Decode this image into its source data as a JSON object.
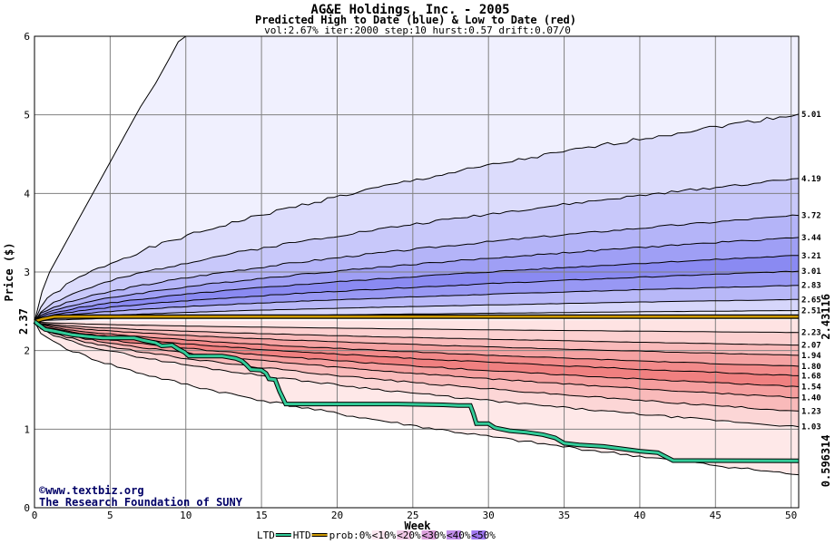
{
  "chart_data": {
    "type": "area",
    "title": "AG&E Holdings, Inc. - 2005",
    "subtitle": "Predicted High to Date (blue) &  Low to Date (red)",
    "params": "vol:2.67% iter:2000 step:10 hurst:0.57 drift:0.07/0",
    "xlabel": "Week",
    "ylabel": "Price ($)",
    "xlim": [
      0,
      50.5
    ],
    "ylim": [
      0,
      6
    ],
    "xticks": [
      0,
      5,
      10,
      15,
      20,
      25,
      30,
      35,
      40,
      45,
      50
    ],
    "yticks": [
      0,
      1,
      2,
      3,
      4,
      5,
      6
    ],
    "grid": true,
    "start_price": 2.37,
    "start_label": "2.37",
    "htd_current": 2.43116,
    "htd_label": "2.43116",
    "ltd_current": 0.596314,
    "ltd_label": "0.596314",
    "high_bands_end": [
      5.01,
      4.19,
      3.72,
      3.44,
      3.21,
      3.01,
      2.83,
      2.65,
      2.51
    ],
    "high_bands_labels": [
      "5.01",
      "4.19",
      "3.72",
      "3.44",
      "3.21",
      "3.01",
      "2.83",
      "2.65",
      "2.51"
    ],
    "low_bands_end": [
      2.23,
      2.07,
      1.94,
      1.8,
      1.68,
      1.54,
      1.4,
      1.23,
      1.03
    ],
    "low_bands_labels": [
      "2.23",
      "2.07",
      "1.94",
      "1.80",
      "1.68",
      "1.54",
      "1.40",
      "1.23",
      "1.03"
    ],
    "outer_high_label_note": "",
    "htd_series": {
      "name": "HTD",
      "x": [
        0,
        0.5,
        1.3,
        2,
        50.5
      ],
      "y": [
        2.37,
        2.4,
        2.43,
        2.43116,
        2.43116
      ]
    },
    "ltd_series": {
      "name": "LTD",
      "x": [
        0,
        0.7,
        1.5,
        2.5,
        3.5,
        4.5,
        5.5,
        6.6,
        7.2,
        8,
        8.4,
        9.1,
        9.5,
        9.9,
        10.2,
        12.4,
        13.3,
        13.7,
        14,
        14.3,
        15,
        15.3,
        15.5,
        15.9,
        16.2,
        16.6,
        24,
        27,
        28,
        28.8,
        29,
        29.2,
        30,
        30.4,
        30.6,
        31.4,
        32.5,
        33.6,
        34.4,
        35,
        36,
        37.6,
        40,
        41.2,
        41.6,
        42.2,
        50.5
      ],
      "y": [
        2.37,
        2.27,
        2.24,
        2.2,
        2.18,
        2.16,
        2.16,
        2.16,
        2.13,
        2.1,
        2.06,
        2.07,
        2.02,
        1.98,
        1.93,
        1.93,
        1.9,
        1.87,
        1.82,
        1.76,
        1.75,
        1.71,
        1.64,
        1.63,
        1.48,
        1.32,
        1.32,
        1.31,
        1.3,
        1.3,
        1.2,
        1.07,
        1.07,
        1.02,
        1.01,
        0.98,
        0.96,
        0.93,
        0.89,
        0.82,
        0.8,
        0.78,
        0.72,
        0.7,
        0.66,
        0.6,
        0.596314
      ]
    },
    "outer_high_curve": {
      "x": [
        0,
        0.5,
        1,
        2,
        3,
        4,
        5,
        6,
        7,
        8,
        9,
        9.5,
        10
      ],
      "y": [
        2.37,
        2.75,
        3.0,
        3.35,
        3.7,
        4.05,
        4.4,
        4.75,
        5.1,
        5.4,
        5.75,
        5.93,
        6.0
      ]
    },
    "outer_low_end": 0.42,
    "legend": {
      "ltd": "LTD",
      "htd": "HTD",
      "prob": "prob:0%",
      "p10": "<10%",
      "p20": "<20%",
      "p30": "<30%",
      "p40": "<40%",
      "p50": "<50%"
    },
    "colors": {
      "ltd": "#33cc99",
      "htd": "#cc9900",
      "htd_value_text": "#996600",
      "ltd_value_text": "#006600",
      "start_value_text": "#006600",
      "blue_bands": [
        "#f0f0fe",
        "#dcdcfc",
        "#c8c8fa",
        "#b4b4f8",
        "#9f9ff5",
        "#8a8af2",
        "#9898f4",
        "#b8b8f8",
        "#d6d6fb",
        "#eaeafd"
      ],
      "red_bands": [
        "#fee3e3",
        "#fcd0d0",
        "#f9baba",
        "#f5a2a2",
        "#f28a8a",
        "#f08080",
        "#f59e9e",
        "#f9baba",
        "#fcd6d6",
        "#fee8e8"
      ],
      "legend_swatches": [
        "#ffffff",
        "#fce6f0",
        "#f0c8e6",
        "#dca0dc",
        "#c08ce8",
        "#a078f0"
      ]
    }
  },
  "footer": {
    "credit_url": "©www.textbiz.org",
    "credit_org": "The Research Foundation of SUNY"
  }
}
